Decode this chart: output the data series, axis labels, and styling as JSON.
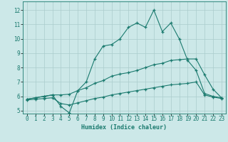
{
  "xlabel": "Humidex (Indice chaleur)",
  "bg_color": "#cce8e8",
  "grid_color": "#aacccc",
  "line_color": "#1a7a6e",
  "xlim": [
    -0.5,
    23.5
  ],
  "ylim": [
    4.8,
    12.6
  ],
  "yticks": [
    5,
    6,
    7,
    8,
    9,
    10,
    11,
    12
  ],
  "xticks": [
    0,
    1,
    2,
    3,
    4,
    5,
    6,
    7,
    8,
    9,
    10,
    11,
    12,
    13,
    14,
    15,
    16,
    17,
    18,
    19,
    20,
    21,
    22,
    23
  ],
  "line1_x": [
    0,
    1,
    2,
    3,
    4,
    5,
    6,
    7,
    8,
    9,
    10,
    11,
    12,
    13,
    14,
    15,
    16,
    17,
    18,
    19,
    20,
    21,
    22,
    23
  ],
  "line1_y": [
    5.8,
    5.9,
    6.0,
    6.1,
    5.3,
    4.85,
    6.4,
    7.0,
    8.6,
    9.5,
    9.6,
    10.0,
    10.8,
    11.1,
    10.8,
    12.0,
    10.5,
    11.1,
    10.0,
    8.5,
    7.8,
    6.2,
    6.0,
    5.9
  ],
  "line2_x": [
    0,
    1,
    2,
    3,
    4,
    5,
    6,
    7,
    8,
    9,
    10,
    11,
    12,
    13,
    14,
    15,
    16,
    17,
    18,
    19,
    20,
    21,
    22,
    23
  ],
  "line2_y": [
    5.8,
    5.9,
    6.0,
    6.1,
    6.1,
    6.15,
    6.4,
    6.6,
    6.9,
    7.1,
    7.4,
    7.55,
    7.65,
    7.8,
    8.0,
    8.2,
    8.3,
    8.5,
    8.55,
    8.6,
    8.6,
    7.5,
    6.5,
    5.9
  ],
  "line3_x": [
    0,
    1,
    2,
    3,
    4,
    5,
    6,
    7,
    8,
    9,
    10,
    11,
    12,
    13,
    14,
    15,
    16,
    17,
    18,
    19,
    20,
    21,
    22,
    23
  ],
  "line3_y": [
    5.75,
    5.8,
    5.85,
    5.9,
    5.5,
    5.4,
    5.55,
    5.7,
    5.85,
    5.95,
    6.1,
    6.2,
    6.3,
    6.4,
    6.5,
    6.6,
    6.7,
    6.8,
    6.85,
    6.9,
    7.0,
    6.1,
    5.95,
    5.85
  ]
}
